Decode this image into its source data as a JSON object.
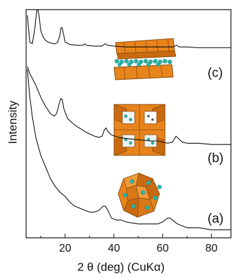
{
  "chart_data": {
    "type": "line",
    "xlabel": "2 θ (deg) (CuKα)",
    "ylabel": "Intensity",
    "xlim": [
      4,
      88
    ],
    "x_ticks": [
      20,
      40,
      60,
      80
    ],
    "y_ticks": [],
    "grid": false,
    "legend": "none",
    "colors": {
      "trace": "#111111",
      "octahedra": "#e8841c",
      "octahedra_edge": "#8a4a0a",
      "ions": "#2bb5a8"
    },
    "series": [
      {
        "label": "(c)",
        "points": [
          [
            4.5,
            0.93
          ],
          [
            5.5,
            0.6
          ],
          [
            6.5,
            0.58
          ],
          [
            7.5,
            0.75
          ],
          [
            8.3,
            0.98
          ],
          [
            8.8,
            1.0
          ],
          [
            9.3,
            0.93
          ],
          [
            10,
            0.74
          ],
          [
            11,
            0.66
          ],
          [
            12,
            0.62
          ],
          [
            13,
            0.6
          ],
          [
            14,
            0.59
          ],
          [
            15,
            0.58
          ],
          [
            16,
            0.58
          ],
          [
            17,
            0.6
          ],
          [
            17.8,
            0.68
          ],
          [
            18.3,
            0.77
          ],
          [
            18.7,
            0.78
          ],
          [
            19.2,
            0.72
          ],
          [
            20,
            0.6
          ],
          [
            22,
            0.57
          ],
          [
            25,
            0.56
          ],
          [
            27.3,
            0.56
          ],
          [
            28,
            0.58
          ],
          [
            28.7,
            0.56
          ],
          [
            32,
            0.55
          ],
          [
            35,
            0.55
          ],
          [
            36.5,
            0.58
          ],
          [
            37.5,
            0.56
          ],
          [
            40,
            0.55
          ],
          [
            45,
            0.54
          ],
          [
            50,
            0.54
          ],
          [
            55,
            0.54
          ],
          [
            60,
            0.54
          ],
          [
            64,
            0.54
          ],
          [
            65.7,
            0.56
          ],
          [
            66.8,
            0.54
          ],
          [
            70,
            0.54
          ],
          [
            75,
            0.53
          ],
          [
            80,
            0.53
          ],
          [
            85,
            0.53
          ],
          [
            88,
            0.53
          ]
        ]
      },
      {
        "label": "(b)",
        "points": [
          [
            4.5,
            0.88
          ],
          [
            5.5,
            0.82
          ],
          [
            6.5,
            0.78
          ],
          [
            8,
            0.72
          ],
          [
            10,
            0.62
          ],
          [
            12,
            0.54
          ],
          [
            14,
            0.48
          ],
          [
            15.5,
            0.46
          ],
          [
            16.5,
            0.48
          ],
          [
            17.5,
            0.56
          ],
          [
            18.2,
            0.61
          ],
          [
            18.8,
            0.6
          ],
          [
            19.5,
            0.52
          ],
          [
            21,
            0.44
          ],
          [
            23,
            0.4
          ],
          [
            25,
            0.37
          ],
          [
            28,
            0.33
          ],
          [
            30,
            0.31
          ],
          [
            32,
            0.29
          ],
          [
            34,
            0.28
          ],
          [
            35.2,
            0.29
          ],
          [
            36,
            0.34
          ],
          [
            36.8,
            0.36
          ],
          [
            37.5,
            0.33
          ],
          [
            39,
            0.3
          ],
          [
            42,
            0.28
          ],
          [
            45,
            0.27
          ],
          [
            50,
            0.26
          ],
          [
            55,
            0.25
          ],
          [
            58,
            0.25
          ],
          [
            60,
            0.24
          ],
          [
            62,
            0.23
          ],
          [
            64,
            0.24
          ],
          [
            65.5,
            0.29
          ],
          [
            66.5,
            0.27
          ],
          [
            68,
            0.24
          ],
          [
            70,
            0.23
          ],
          [
            75,
            0.23
          ],
          [
            80,
            0.22
          ],
          [
            85,
            0.22
          ],
          [
            88,
            0.22
          ]
        ]
      },
      {
        "label": "(a)",
        "points": [
          [
            4.5,
            0.84
          ],
          [
            5.5,
            0.7
          ],
          [
            6.5,
            0.6
          ],
          [
            8,
            0.49
          ],
          [
            10,
            0.4
          ],
          [
            12,
            0.34
          ],
          [
            14,
            0.28
          ],
          [
            16,
            0.24
          ],
          [
            18,
            0.21
          ],
          [
            20,
            0.19
          ],
          [
            22,
            0.16
          ],
          [
            24,
            0.14
          ],
          [
            26,
            0.13
          ],
          [
            28,
            0.12
          ],
          [
            30,
            0.11
          ],
          [
            32,
            0.11
          ],
          [
            34,
            0.12
          ],
          [
            35.5,
            0.14
          ],
          [
            36.5,
            0.14
          ],
          [
            37.5,
            0.12
          ],
          [
            39,
            0.08
          ],
          [
            41,
            0.07
          ],
          [
            43,
            0.07
          ],
          [
            45,
            0.06
          ],
          [
            50,
            0.05
          ],
          [
            55,
            0.05
          ],
          [
            58,
            0.05
          ],
          [
            60,
            0.06
          ],
          [
            62,
            0.08
          ],
          [
            63,
            0.08
          ],
          [
            64,
            0.07
          ],
          [
            66,
            0.05
          ],
          [
            70,
            0.03
          ],
          [
            75,
            0.03
          ],
          [
            80,
            0.02
          ],
          [
            85,
            0.02
          ],
          [
            88,
            0.02
          ]
        ]
      }
    ]
  },
  "structure_images": [
    {
      "name": "layered-structure-icon"
    },
    {
      "name": "tunnel-structure-icon"
    },
    {
      "name": "spinel-structure-icon"
    }
  ]
}
